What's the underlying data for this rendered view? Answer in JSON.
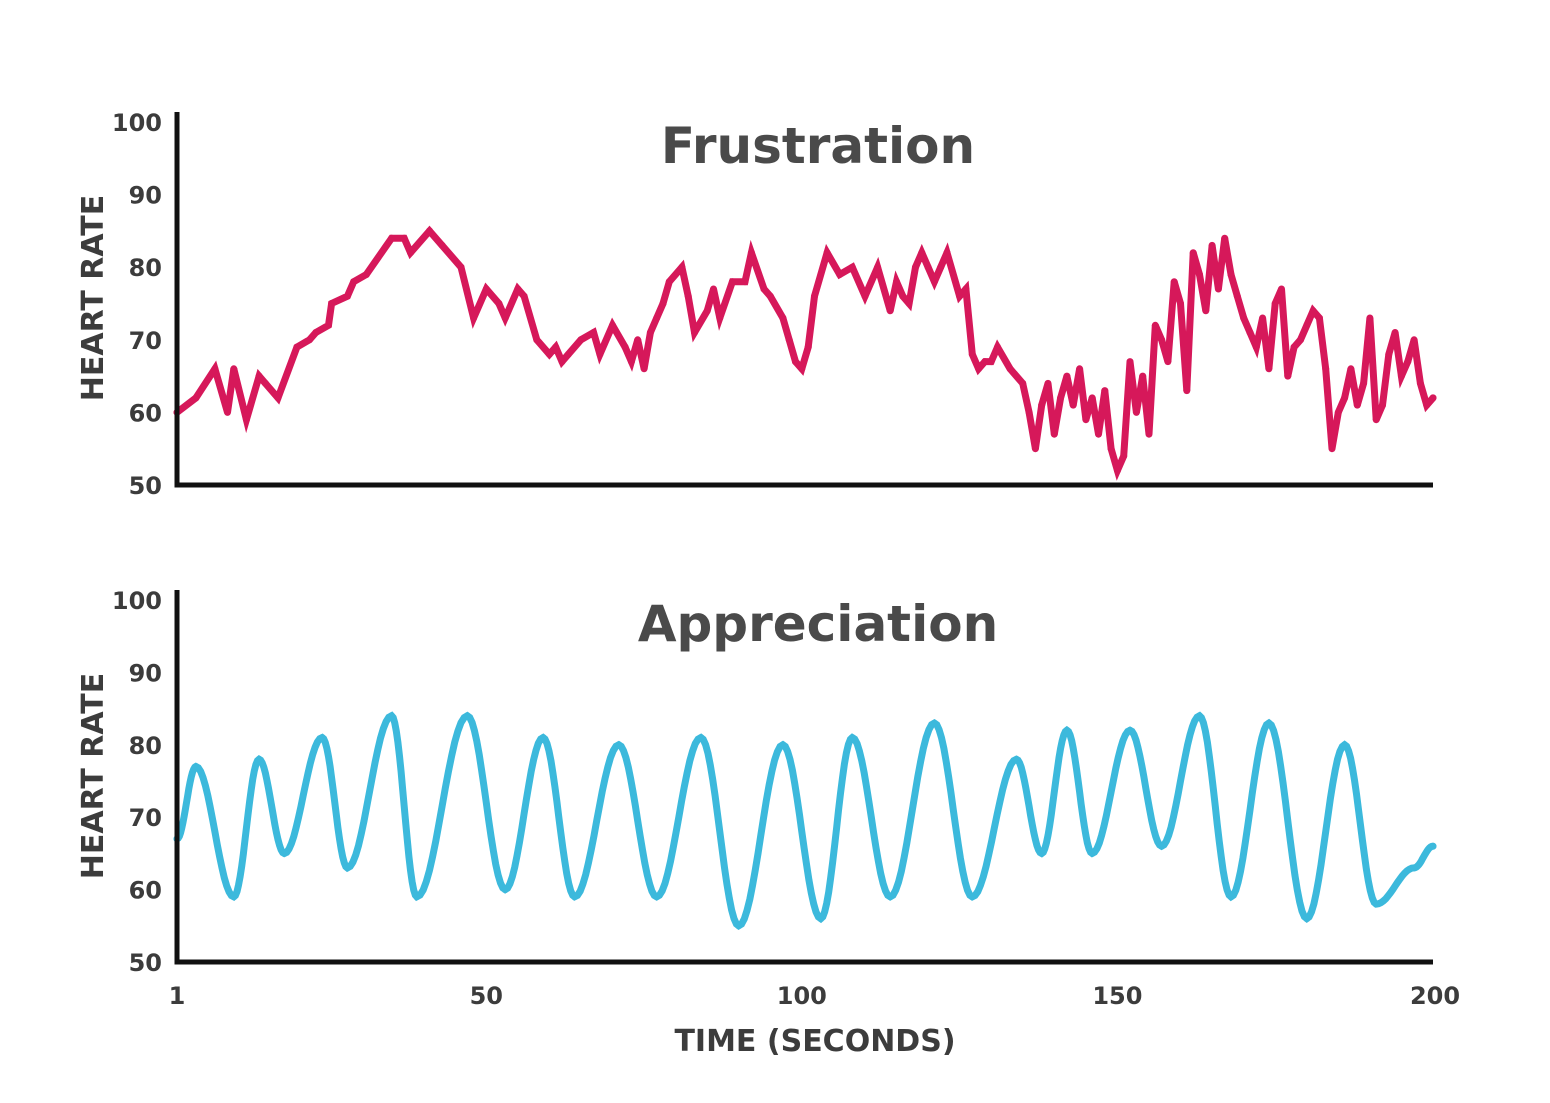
{
  "colors": {
    "frustration": "#d6185a",
    "appreciation": "#3cb9dc",
    "axis": "#111111",
    "text": "#3c3c3c"
  },
  "chart_data": [
    {
      "type": "line",
      "title": "Frustration",
      "ylabel": "HEART RATE",
      "xlabel": "",
      "ylim": [
        50,
        100
      ],
      "xlim": [
        1,
        200
      ],
      "yticks": [
        "100",
        "90",
        "80",
        "70",
        "60",
        "50"
      ],
      "xticks": [],
      "grid": false,
      "series": [
        {
          "x": [
            1,
            4,
            7,
            9,
            10,
            12,
            14,
            15,
            17,
            20,
            22,
            23,
            25,
            25.5,
            28,
            29,
            31,
            35,
            37,
            38,
            41,
            43,
            46,
            48,
            50,
            52,
            53,
            55,
            56,
            58,
            60,
            61,
            62,
            63,
            65,
            67,
            68,
            70,
            72,
            73,
            74,
            75,
            76,
            77,
            78,
            79,
            81,
            82,
            83,
            85,
            86,
            87,
            89,
            91,
            92,
            94,
            95,
            97,
            98,
            99,
            100,
            101,
            102,
            104,
            106,
            108,
            110,
            112,
            114,
            115,
            116,
            117,
            118,
            119,
            120,
            121,
            122,
            123,
            125,
            126,
            127,
            128,
            129,
            130,
            131,
            133,
            135,
            136,
            137,
            138,
            139,
            140,
            141,
            142,
            143,
            144,
            145,
            146,
            147,
            148,
            149,
            150,
            151,
            152,
            153,
            154,
            155,
            156,
            157,
            158,
            159,
            160,
            161,
            162,
            163,
            164,
            165,
            166,
            167,
            168,
            169,
            170,
            171,
            172,
            173,
            174,
            175,
            176,
            177,
            178,
            179,
            180,
            181,
            182,
            183,
            184,
            185,
            186,
            187,
            188,
            189,
            190,
            191,
            192,
            193,
            194,
            195,
            196,
            197,
            198,
            199,
            200
          ],
          "values": [
            60,
            62,
            66,
            60,
            66,
            59,
            65,
            64,
            62,
            69,
            70,
            71,
            72,
            75,
            76,
            78,
            79,
            84,
            84,
            82,
            85,
            83,
            80,
            73,
            77,
            75,
            73,
            77,
            76,
            70,
            68,
            69,
            67,
            68,
            70,
            71,
            68,
            72,
            69,
            67,
            70,
            66,
            71,
            73,
            75,
            78,
            80,
            76,
            71,
            74,
            77,
            73,
            78,
            78,
            82,
            77,
            76,
            73,
            70,
            67,
            66,
            69,
            76,
            82,
            79,
            80,
            76,
            80,
            74,
            78,
            76,
            75,
            80,
            82,
            80,
            78,
            80,
            82,
            76,
            77,
            68,
            66,
            67,
            67,
            69,
            66,
            64,
            60,
            55,
            61,
            64,
            57,
            62,
            65,
            61,
            66,
            59,
            62,
            57,
            63,
            55,
            52,
            54,
            67,
            60,
            65,
            57,
            72,
            70,
            67,
            78,
            75,
            63,
            82,
            79,
            74,
            83,
            77,
            84,
            79,
            76,
            73,
            71,
            69,
            73,
            66,
            75,
            77,
            65,
            69,
            70,
            72,
            74,
            73,
            66,
            55,
            60,
            62,
            66,
            61,
            64,
            73,
            59,
            61,
            68,
            71,
            65,
            67,
            70,
            64,
            61,
            62
          ]
        }
      ]
    },
    {
      "type": "line",
      "title": "Appreciation",
      "ylabel": "HEART RATE",
      "xlabel": "TIME (SECONDS)",
      "ylim": [
        50,
        100
      ],
      "xlim": [
        1,
        200
      ],
      "yticks": [
        "100",
        "90",
        "80",
        "70",
        "60",
        "50"
      ],
      "xticks": [
        "1",
        "50",
        "100",
        "150",
        "200"
      ],
      "grid": false,
      "series": [
        {
          "x": [
            1,
            4,
            10,
            14,
            18,
            24,
            28,
            35,
            39,
            47,
            53,
            59,
            64,
            71,
            77,
            84,
            90,
            97,
            103,
            108,
            114,
            121,
            127,
            134,
            138,
            142,
            146,
            152,
            157,
            163,
            168,
            174,
            180,
            186,
            191,
            197,
            200
          ],
          "values": [
            67,
            77,
            59,
            78,
            65,
            81,
            63,
            84,
            59,
            84,
            60,
            81,
            59,
            80,
            59,
            81,
            55,
            80,
            56,
            81,
            59,
            83,
            59,
            78,
            65,
            82,
            65,
            82,
            66,
            84,
            59,
            83,
            56,
            80,
            58,
            63,
            66
          ]
        }
      ]
    }
  ]
}
